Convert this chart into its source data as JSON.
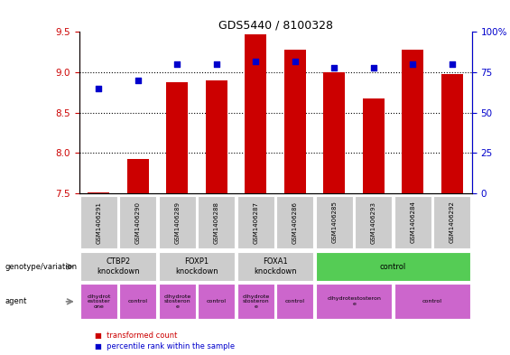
{
  "title": "GDS5440 / 8100328",
  "samples": [
    "GSM1406291",
    "GSM1406290",
    "GSM1406289",
    "GSM1406288",
    "GSM1406287",
    "GSM1406286",
    "GSM1406285",
    "GSM1406293",
    "GSM1406284",
    "GSM1406292"
  ],
  "bar_values": [
    7.51,
    7.93,
    8.88,
    8.9,
    9.47,
    9.28,
    9.0,
    8.68,
    9.28,
    8.98
  ],
  "dot_values": [
    65,
    70,
    80,
    80,
    82,
    82,
    78,
    78,
    80,
    80
  ],
  "bar_bottom": 7.5,
  "ylim_left": [
    7.5,
    9.5
  ],
  "ylim_right": [
    0,
    100
  ],
  "yticks_left": [
    7.5,
    8.0,
    8.5,
    9.0,
    9.5
  ],
  "yticks_right": [
    0,
    25,
    50,
    75,
    100
  ],
  "bar_color": "#cc0000",
  "dot_color": "#0000cc",
  "bar_width": 0.55,
  "genotype_groups": [
    {
      "label": "CTBP2\nknockdown",
      "start": 0,
      "end": 2,
      "color": "#cccccc"
    },
    {
      "label": "FOXP1\nknockdown",
      "start": 2,
      "end": 4,
      "color": "#cccccc"
    },
    {
      "label": "FOXA1\nknockdown",
      "start": 4,
      "end": 6,
      "color": "#cccccc"
    },
    {
      "label": "control",
      "start": 6,
      "end": 10,
      "color": "#55cc55"
    }
  ],
  "agent_groups": [
    {
      "label": "dihydrot\nestoster\none",
      "start": 0,
      "end": 1,
      "color": "#cc66cc"
    },
    {
      "label": "control",
      "start": 1,
      "end": 2,
      "color": "#cc66cc"
    },
    {
      "label": "dihydrote\nstosteron\ne",
      "start": 2,
      "end": 3,
      "color": "#cc66cc"
    },
    {
      "label": "control",
      "start": 3,
      "end": 4,
      "color": "#cc66cc"
    },
    {
      "label": "dihydrote\nstosteron\ne",
      "start": 4,
      "end": 5,
      "color": "#cc66cc"
    },
    {
      "label": "control",
      "start": 5,
      "end": 6,
      "color": "#cc66cc"
    },
    {
      "label": "dihydrotestosteron\ne",
      "start": 6,
      "end": 8,
      "color": "#cc66cc"
    },
    {
      "label": "control",
      "start": 8,
      "end": 10,
      "color": "#cc66cc"
    }
  ],
  "left_axis_color": "#cc0000",
  "right_axis_color": "#0000cc",
  "background_color": "#ffffff",
  "table_bg_color": "#cccccc",
  "left_label_genotype": "genotype/variation",
  "left_label_agent": "agent",
  "legend_bar_label": "transformed count",
  "legend_dot_label": "percentile rank within the sample"
}
